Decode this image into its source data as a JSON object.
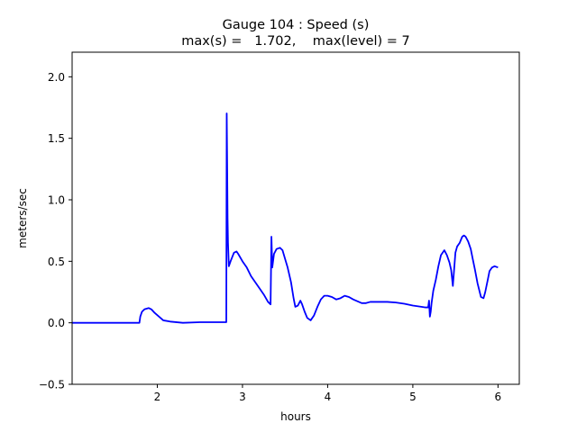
{
  "chart_data": {
    "type": "line",
    "title": "Gauge 104 : Speed (s)",
    "subtitle": "max(s) =   1.702,    max(level) = 7",
    "xlabel": "hours",
    "ylabel": "meters/sec",
    "xlim": [
      1.0,
      6.25
    ],
    "ylim": [
      -0.5,
      2.2
    ],
    "xticks": [
      2,
      3,
      4,
      5,
      6
    ],
    "xtick_labels": [
      "2",
      "3",
      "4",
      "5",
      "6"
    ],
    "yticks": [
      -0.5,
      0.0,
      0.5,
      1.0,
      1.5,
      2.0
    ],
    "ytick_labels": [
      "−0.5",
      "0.0",
      "0.5",
      "1.0",
      "1.5",
      "2.0"
    ],
    "grid": false,
    "series": [
      {
        "color": "#0000ff",
        "x": [
          1.0,
          1.5,
          1.79,
          1.8,
          1.82,
          1.85,
          1.9,
          1.93,
          1.97,
          2.02,
          2.07,
          2.15,
          2.3,
          2.5,
          2.7,
          2.81,
          2.815,
          2.82,
          2.825,
          2.83,
          2.84,
          2.86,
          2.9,
          2.93,
          2.95,
          3.0,
          3.05,
          3.1,
          3.2,
          3.25,
          3.3,
          3.33,
          3.34,
          3.35,
          3.37,
          3.4,
          3.44,
          3.47,
          3.5,
          3.53,
          3.57,
          3.6,
          3.62,
          3.65,
          3.68,
          3.7,
          3.73,
          3.76,
          3.8,
          3.84,
          3.88,
          3.92,
          3.96,
          4.0,
          4.05,
          4.1,
          4.15,
          4.2,
          4.25,
          4.3,
          4.4,
          4.45,
          4.5,
          4.6,
          4.7,
          4.8,
          4.9,
          5.0,
          5.1,
          5.15,
          5.18,
          5.19,
          5.2,
          5.21,
          5.22,
          5.24,
          5.27,
          5.3,
          5.33,
          5.37,
          5.4,
          5.43,
          5.45,
          5.47,
          5.5,
          5.52,
          5.55,
          5.58,
          5.6,
          5.62,
          5.65,
          5.68,
          5.7,
          5.73,
          5.76,
          5.8,
          5.83,
          5.85,
          5.88,
          5.9,
          5.93,
          5.96,
          6.0
        ],
        "y": [
          0.0,
          0.0,
          0.0,
          0.05,
          0.09,
          0.11,
          0.12,
          0.11,
          0.08,
          0.05,
          0.02,
          0.01,
          0.0,
          0.005,
          0.005,
          0.005,
          1.702,
          1.3,
          0.85,
          0.65,
          0.46,
          0.5,
          0.57,
          0.58,
          0.56,
          0.5,
          0.45,
          0.38,
          0.28,
          0.23,
          0.17,
          0.15,
          0.7,
          0.45,
          0.56,
          0.6,
          0.61,
          0.59,
          0.52,
          0.45,
          0.33,
          0.2,
          0.13,
          0.14,
          0.18,
          0.15,
          0.09,
          0.04,
          0.02,
          0.06,
          0.13,
          0.19,
          0.22,
          0.22,
          0.21,
          0.19,
          0.2,
          0.22,
          0.21,
          0.19,
          0.16,
          0.16,
          0.17,
          0.17,
          0.17,
          0.165,
          0.155,
          0.14,
          0.13,
          0.125,
          0.125,
          0.18,
          0.05,
          0.09,
          0.16,
          0.26,
          0.35,
          0.46,
          0.55,
          0.59,
          0.55,
          0.49,
          0.43,
          0.3,
          0.57,
          0.62,
          0.65,
          0.7,
          0.71,
          0.7,
          0.66,
          0.6,
          0.53,
          0.43,
          0.32,
          0.21,
          0.2,
          0.25,
          0.35,
          0.42,
          0.45,
          0.46,
          0.45
        ]
      }
    ]
  }
}
